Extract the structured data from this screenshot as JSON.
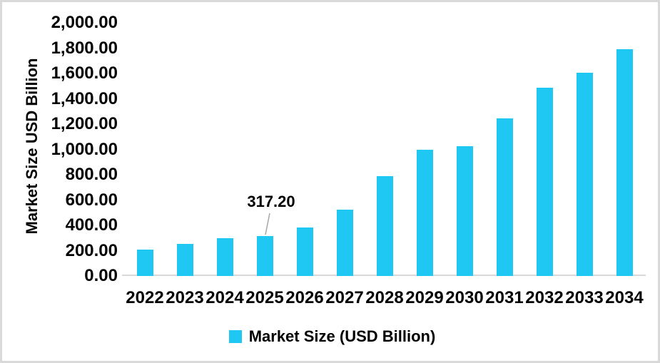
{
  "chart_data": {
    "type": "bar",
    "title": "",
    "xlabel": "",
    "ylabel": "Market Size USD Billion",
    "categories": [
      "2022",
      "2023",
      "2024",
      "2025",
      "2026",
      "2027",
      "2028",
      "2029",
      "2030",
      "2031",
      "2032",
      "2033",
      "2034"
    ],
    "series": [
      {
        "name": "Market Size (USD Billion)",
        "values": [
          207,
          256,
          300,
          317.2,
          383,
          525,
          790,
          1000,
          1023,
          1243,
          1490,
          1605,
          1790
        ]
      }
    ],
    "ylim": [
      0,
      2000
    ],
    "ytick_step": 200,
    "ytick_labels": [
      "0.00",
      "200.00",
      "400.00",
      "600.00",
      "800.00",
      "1,000.00",
      "1,200.00",
      "1,400.00",
      "1,600.00",
      "1,800.00",
      "2,000.00"
    ],
    "grid": false,
    "legend_position": "bottom-center",
    "legend_label": "Market Size (USD Billion)",
    "annotation": {
      "text": "317.20",
      "category": "2025",
      "value": 317.2
    },
    "colors": {
      "bar": "#1ec8f3",
      "axis_line": "#d9d9d9",
      "frame_border": "#d9d9d9",
      "leader_line": "#a6a6a6",
      "text": "#000000"
    }
  }
}
